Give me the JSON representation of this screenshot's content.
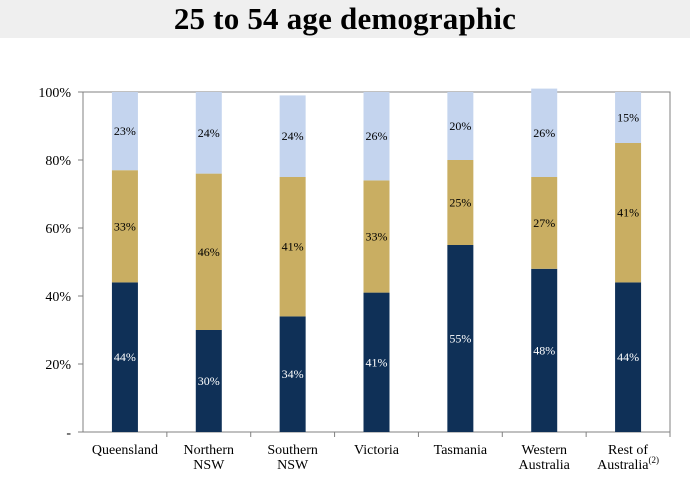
{
  "title": "25 to 54 age demographic",
  "chart_data": {
    "type": "bar",
    "stacked": true,
    "percent_stacked": true,
    "categories": [
      [
        "Queensland"
      ],
      [
        "Northern",
        "NSW"
      ],
      [
        "Southern",
        "NSW"
      ],
      [
        "Victoria"
      ],
      [
        "Tasmania"
      ],
      [
        "Western",
        "Australia"
      ],
      [
        "Rest of",
        "Australia"
      ]
    ],
    "category_superscripts": [
      "",
      "",
      "",
      "",
      "",
      "",
      "(2)"
    ],
    "series": [
      {
        "color": "#0f3057",
        "label_color": "#ffffff",
        "values": [
          44,
          30,
          34,
          41,
          55,
          48,
          44
        ]
      },
      {
        "color": "#c9ae62",
        "label_color": "#000000",
        "values": [
          33,
          46,
          41,
          33,
          25,
          27,
          41
        ]
      },
      {
        "color": "#c4d4ee",
        "label_color": "#000000",
        "values": [
          23,
          24,
          24,
          26,
          20,
          26,
          15
        ]
      }
    ],
    "y_ticks": [
      "-",
      "20%",
      "40%",
      "60%",
      "80%",
      "100%"
    ],
    "ylim": [
      0,
      100
    ],
    "grid": false,
    "legend": "none"
  }
}
